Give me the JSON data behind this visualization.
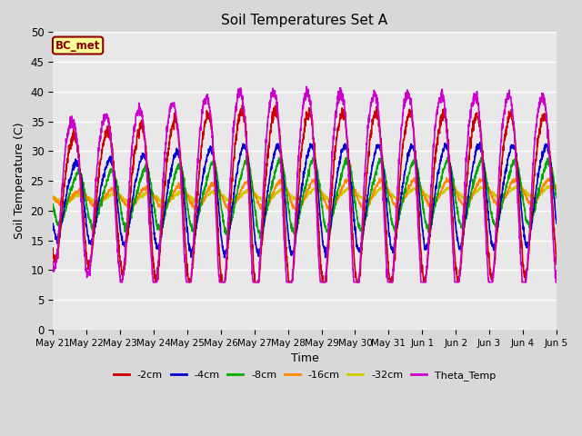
{
  "title": "Soil Temperatures Set A",
  "xlabel": "Time",
  "ylabel": "Soil Temperature (C)",
  "ylim": [
    0,
    50
  ],
  "yticks": [
    0,
    5,
    10,
    15,
    20,
    25,
    30,
    35,
    40,
    45,
    50
  ],
  "annotation_text": "BC_met",
  "annotation_bg": "#FFFF99",
  "annotation_border": "#8B0000",
  "annotation_text_color": "#8B0000",
  "fig_bg_color": "#D8D8D8",
  "plot_bg_color": "#E8E8E8",
  "series_colors": {
    "-2cm": "#CC0000",
    "-4cm": "#0000CC",
    "-8cm": "#00AA00",
    "-16cm": "#FF8800",
    "-32cm": "#CCCC00",
    "Theta_Temp": "#CC00CC"
  },
  "tick_labels": [
    "May 21",
    "May 22",
    "May 23",
    "May 24",
    "May 25",
    "May 26",
    "May 27",
    "May 28",
    "May 29",
    "May 30",
    "May 31",
    "Jun 1",
    "Jun 2",
    "Jun 3",
    "Jun 4",
    "Jun 5"
  ],
  "num_days": 15
}
